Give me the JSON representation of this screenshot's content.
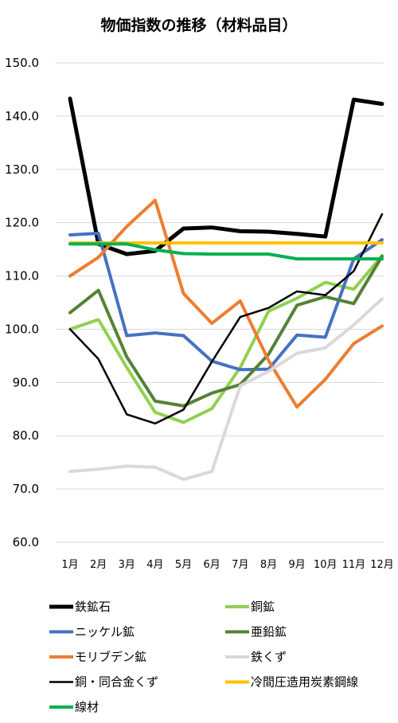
{
  "chart_data": {
    "type": "line",
    "title": "物価指数の推移（材料品目）",
    "categories": [
      "1月",
      "2月",
      "3月",
      "4月",
      "5月",
      "6月",
      "7月",
      "8月",
      "9月",
      "10月",
      "11月",
      "12月"
    ],
    "ylim": [
      60,
      150
    ],
    "yticks": [
      "60.0",
      "70.0",
      "80.0",
      "90.0",
      "100.0",
      "110.0",
      "120.0",
      "130.0",
      "140.0",
      "150.0"
    ],
    "grid": true,
    "legend_position": "bottom",
    "series": [
      {
        "name": "鉄鉱石",
        "color": "#000000",
        "width": 5,
        "values": [
          143.3,
          116.0,
          114.1,
          114.7,
          118.9,
          119.1,
          118.4,
          118.3,
          117.9,
          117.4,
          143.1,
          142.3
        ]
      },
      {
        "name": "銅鉱",
        "color": "#92d050",
        "width": 4,
        "values": [
          100.0,
          101.8,
          92.8,
          84.4,
          82.5,
          85.1,
          92.8,
          103.4,
          105.8,
          108.8,
          107.5,
          113.8
        ]
      },
      {
        "name": "ニッケル鉱",
        "color": "#4472c4",
        "width": 4,
        "values": [
          117.7,
          118.0,
          98.8,
          99.3,
          98.8,
          94.0,
          92.4,
          92.5,
          98.9,
          98.5,
          113.2,
          116.8
        ]
      },
      {
        "name": "亜鉛鉱",
        "color": "#548235",
        "width": 4,
        "values": [
          103.1,
          107.3,
          94.8,
          86.5,
          85.6,
          88.0,
          89.6,
          95.3,
          104.5,
          106.1,
          104.8,
          113.7
        ]
      },
      {
        "name": "モリブデン鉱",
        "color": "#ed7d31",
        "width": 4,
        "values": [
          110.0,
          113.5,
          119.3,
          124.2,
          106.7,
          101.1,
          105.3,
          94.1,
          85.4,
          90.6,
          97.3,
          100.6
        ]
      },
      {
        "name": "鉄くず",
        "color": "#d9d9d9",
        "width": 4,
        "values": [
          73.3,
          73.7,
          74.3,
          74.1,
          71.8,
          73.3,
          89.4,
          92.1,
          95.5,
          96.5,
          100.8,
          105.7
        ]
      },
      {
        "name": "銅・同合金くず",
        "color": "#000000",
        "width": 2.5,
        "values": [
          100.0,
          94.4,
          84.0,
          82.3,
          84.9,
          93.9,
          102.3,
          104.0,
          107.1,
          106.4,
          110.9,
          121.6
        ]
      },
      {
        "name": "冷間圧造用炭素鋼線",
        "color": "#ffc000",
        "width": 4,
        "values": [
          116.2,
          116.2,
          116.2,
          116.2,
          116.2,
          116.2,
          116.2,
          116.2,
          116.2,
          116.2,
          116.2,
          116.2
        ]
      },
      {
        "name": "線材",
        "color": "#00b050",
        "width": 4,
        "values": [
          116.0,
          116.0,
          116.0,
          114.9,
          114.2,
          114.1,
          114.1,
          114.1,
          113.2,
          113.2,
          113.2,
          113.2
        ]
      }
    ]
  }
}
